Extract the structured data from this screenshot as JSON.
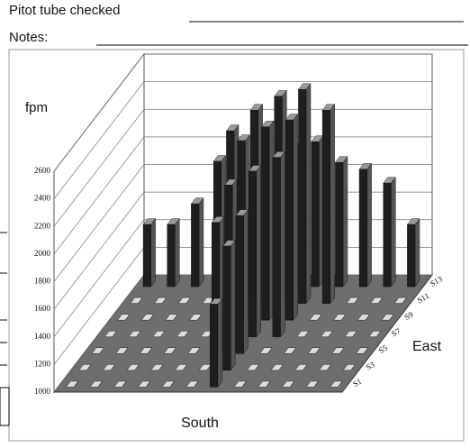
{
  "form": {
    "pitot_label": "Pitot tube checked",
    "notes_label": "Notes:"
  },
  "chart_data": {
    "type": "bar3d",
    "value_axis_label": "fpm",
    "x_axis_label": "South",
    "depth_axis_label": "East",
    "categories": [
      null,
      null,
      null,
      null,
      null,
      null,
      null,
      null,
      null,
      null,
      null,
      null
    ],
    "ylim": [
      1000,
      2600
    ],
    "yticks": [
      1000,
      1200,
      1400,
      1600,
      1800,
      2000,
      2200,
      2400,
      2600
    ],
    "grid": true,
    "series": [
      {
        "name": "S1",
        "color": "#1e1e1e",
        "values": [
          1000,
          1000,
          1000,
          1000,
          1000,
          1000,
          1600,
          1000,
          1000,
          1000,
          1000,
          1000
        ]
      },
      {
        "name": "S3",
        "color": "#1e1e1e",
        "values": [
          1000,
          1000,
          1000,
          1000,
          1000,
          1000,
          1900,
          1000,
          1000,
          1000,
          1000,
          1000
        ]
      },
      {
        "name": "S5",
        "color": "#1e1e1e",
        "values": [
          1000,
          1000,
          1000,
          1000,
          1000,
          1950,
          2000,
          1000,
          1000,
          1000,
          1000,
          1000
        ]
      },
      {
        "name": "S7",
        "color": "#1e1e1e",
        "values": [
          1000,
          1000,
          1000,
          1000,
          1000,
          2100,
          2200,
          2300,
          1000,
          1000,
          1000,
          1000
        ]
      },
      {
        "name": "S9",
        "color": "#1e1e1e",
        "values": [
          1000,
          1000,
          1000,
          1000,
          2150,
          2300,
          2400,
          2450,
          1000,
          1000,
          1000,
          1000
        ]
      },
      {
        "name": "S11",
        "color": "#1e1e1e",
        "values": [
          1000,
          1000,
          1000,
          1000,
          2250,
          2400,
          2500,
          2550,
          2400,
          1000,
          1000,
          1000
        ]
      },
      {
        "name": "S13",
        "color": "#1e1e1e",
        "values": [
          1450,
          1450,
          1600,
          1550,
          1750,
          1850,
          2000,
          2050,
          1900,
          1850,
          1750,
          1450
        ]
      }
    ]
  }
}
